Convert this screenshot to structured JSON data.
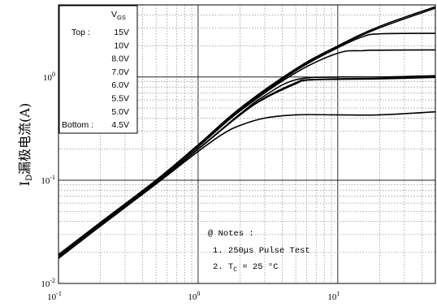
{
  "chart_data": {
    "type": "line",
    "ylabel": "I",
    "ylabel_sub": "D",
    "ylabel_rest": "漏极电流(A)",
    "x_scale": "log",
    "y_scale": "log",
    "xlim": [
      0.1,
      50
    ],
    "ylim": [
      0.01,
      5
    ],
    "x_ticks": [
      {
        "value": 0.1,
        "base": "10",
        "exp": "-1"
      },
      {
        "value": 1,
        "base": "10",
        "exp": "0"
      },
      {
        "value": 10,
        "base": "10",
        "exp": "1"
      }
    ],
    "y_ticks": [
      {
        "value": 0.01,
        "base": "10",
        "exp": "-2"
      },
      {
        "value": 0.1,
        "base": "10",
        "exp": "-1"
      },
      {
        "value": 1,
        "base": "10",
        "exp": "0"
      }
    ],
    "grid": true,
    "legend": {
      "placement": "top-left",
      "header_base": "V",
      "header_sub": "GS",
      "top_label": "Top :",
      "bottom_label": "Bottom :",
      "entries": [
        "15V",
        "10V",
        "8.0V",
        "7.0V",
        "6.0V",
        "5.5V",
        "5.0V",
        "4.5V"
      ]
    },
    "notes": {
      "title": "@ Notes :",
      "line1": "1. 250μs Pulse Test",
      "line2_pre": "2. T",
      "line2_sub": "C",
      "line2_post": " = 25 °C"
    },
    "series": [
      {
        "x": [
          0.1,
          0.2,
          0.5,
          1,
          2,
          5,
          10,
          20,
          50
        ],
        "y": [
          0.019,
          0.039,
          0.1,
          0.22,
          0.5,
          1.2,
          2.0,
          3.1,
          4.8
        ]
      },
      {
        "x": [
          0.1,
          0.2,
          0.5,
          1,
          2,
          5,
          10,
          20,
          50
        ],
        "y": [
          0.019,
          0.039,
          0.1,
          0.22,
          0.49,
          1.18,
          1.98,
          3.0,
          4.65
        ]
      },
      {
        "x": [
          0.1,
          0.2,
          0.5,
          1,
          2,
          5,
          10,
          15,
          20,
          50
        ],
        "y": [
          0.0185,
          0.038,
          0.098,
          0.215,
          0.48,
          1.15,
          1.92,
          2.45,
          2.62,
          2.65
        ]
      },
      {
        "x": [
          0.1,
          0.2,
          0.5,
          1,
          2,
          5,
          10,
          15,
          20,
          50
        ],
        "y": [
          0.0185,
          0.038,
          0.097,
          0.21,
          0.47,
          1.1,
          1.7,
          1.8,
          1.82,
          1.83
        ]
      },
      {
        "x": [
          0.1,
          0.2,
          0.5,
          1,
          2,
          3,
          5,
          10,
          20,
          50
        ],
        "y": [
          0.018,
          0.037,
          0.095,
          0.2,
          0.44,
          0.66,
          0.94,
          1.0,
          1.0,
          1.03
        ]
      },
      {
        "x": [
          0.1,
          0.2,
          0.5,
          1,
          2,
          3,
          5,
          6,
          10,
          20,
          50
        ],
        "y": [
          0.018,
          0.037,
          0.094,
          0.2,
          0.43,
          0.63,
          0.88,
          0.94,
          0.96,
          0.97,
          1.0
        ]
      },
      {
        "x": [
          0.1,
          0.2,
          0.5,
          1,
          2,
          3,
          5,
          6,
          10,
          20,
          50
        ],
        "y": [
          0.018,
          0.037,
          0.094,
          0.2,
          0.43,
          0.62,
          0.86,
          0.93,
          0.95,
          0.96,
          0.99
        ]
      },
      {
        "x": [
          0.1,
          0.2,
          0.5,
          1,
          1.5,
          2,
          3,
          5,
          10,
          20,
          50
        ],
        "y": [
          0.0175,
          0.036,
          0.092,
          0.19,
          0.28,
          0.34,
          0.4,
          0.43,
          0.43,
          0.43,
          0.46
        ]
      }
    ]
  }
}
